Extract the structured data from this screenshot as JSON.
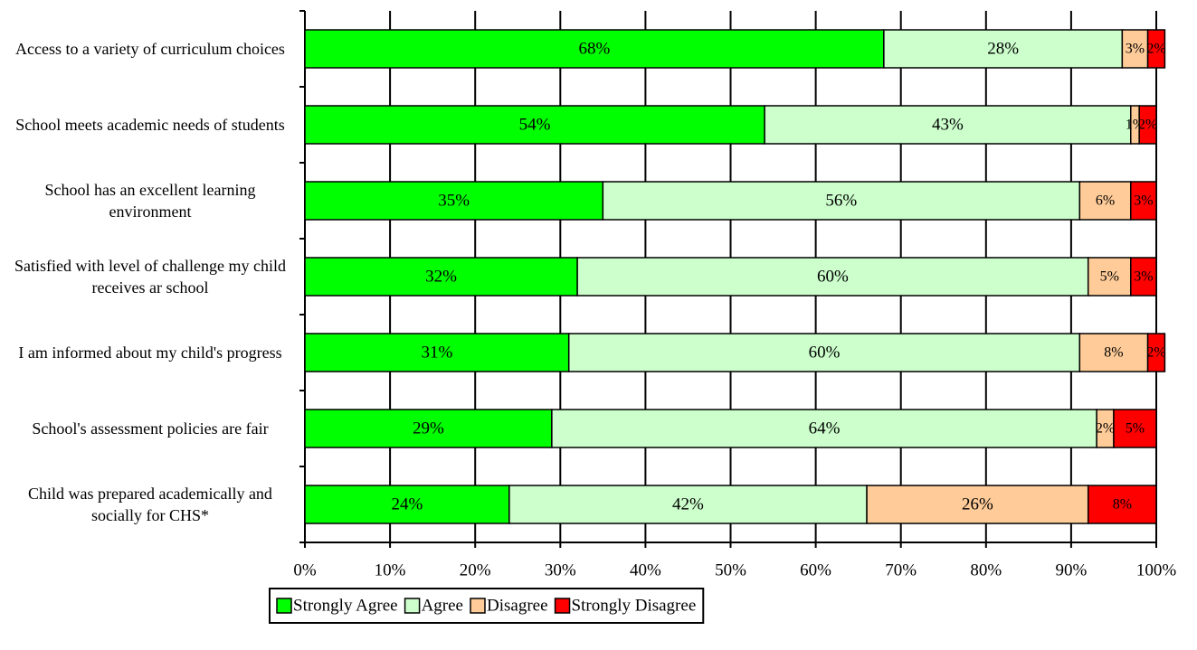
{
  "chart_data": {
    "type": "stacked_barh",
    "categories": [
      "Access to a variety of curriculum choices",
      "School meets academic needs of students",
      "School has an excellent learning environment",
      "Satisfied with level of challenge my child receives ar school",
      "I am informed about my child's progress",
      "School's assessment policies are fair",
      "Child was prepared academically and socially for CHS*"
    ],
    "series": [
      {
        "name": "Strongly Agree",
        "color": "#00ff00",
        "values": [
          68,
          54,
          35,
          32,
          31,
          29,
          24
        ],
        "value_labels": [
          "68%",
          "54%",
          "35%",
          "32%",
          "31%",
          "29%",
          "24%"
        ]
      },
      {
        "name": "Agree",
        "color": "#ccffcc",
        "values": [
          28,
          43,
          56,
          60,
          60,
          64,
          42
        ],
        "value_labels": [
          "28%",
          "43%",
          "56%",
          "60%",
          "60%",
          "64%",
          "42%"
        ]
      },
      {
        "name": "Disagree",
        "color": "#ffcc99",
        "values": [
          3,
          1,
          6,
          5,
          8,
          2,
          26
        ],
        "value_labels": [
          "3%",
          "1%",
          "6%",
          "5%",
          "8%",
          "2%",
          "26%"
        ]
      },
      {
        "name": "Strongly Disagree",
        "color": "#ff0000",
        "values": [
          2,
          2,
          3,
          3,
          2,
          5,
          8
        ],
        "value_labels": [
          "2%",
          "2%",
          "3%",
          "3%",
          "2%",
          "5%",
          "8%"
        ]
      }
    ],
    "xlim": [
      0,
      100
    ],
    "xticks": [
      {
        "value": 0,
        "label": "0%"
      },
      {
        "value": 10,
        "label": "10%"
      },
      {
        "value": 20,
        "label": "20%"
      },
      {
        "value": 30,
        "label": "30%"
      },
      {
        "value": 40,
        "label": "40%"
      },
      {
        "value": 50,
        "label": "50%"
      },
      {
        "value": 60,
        "label": "60%"
      },
      {
        "value": 70,
        "label": "70%"
      },
      {
        "value": 80,
        "label": "80%"
      },
      {
        "value": 90,
        "label": "90%"
      },
      {
        "value": 100,
        "label": "100%"
      }
    ],
    "grid": true,
    "legend": "bottom"
  }
}
